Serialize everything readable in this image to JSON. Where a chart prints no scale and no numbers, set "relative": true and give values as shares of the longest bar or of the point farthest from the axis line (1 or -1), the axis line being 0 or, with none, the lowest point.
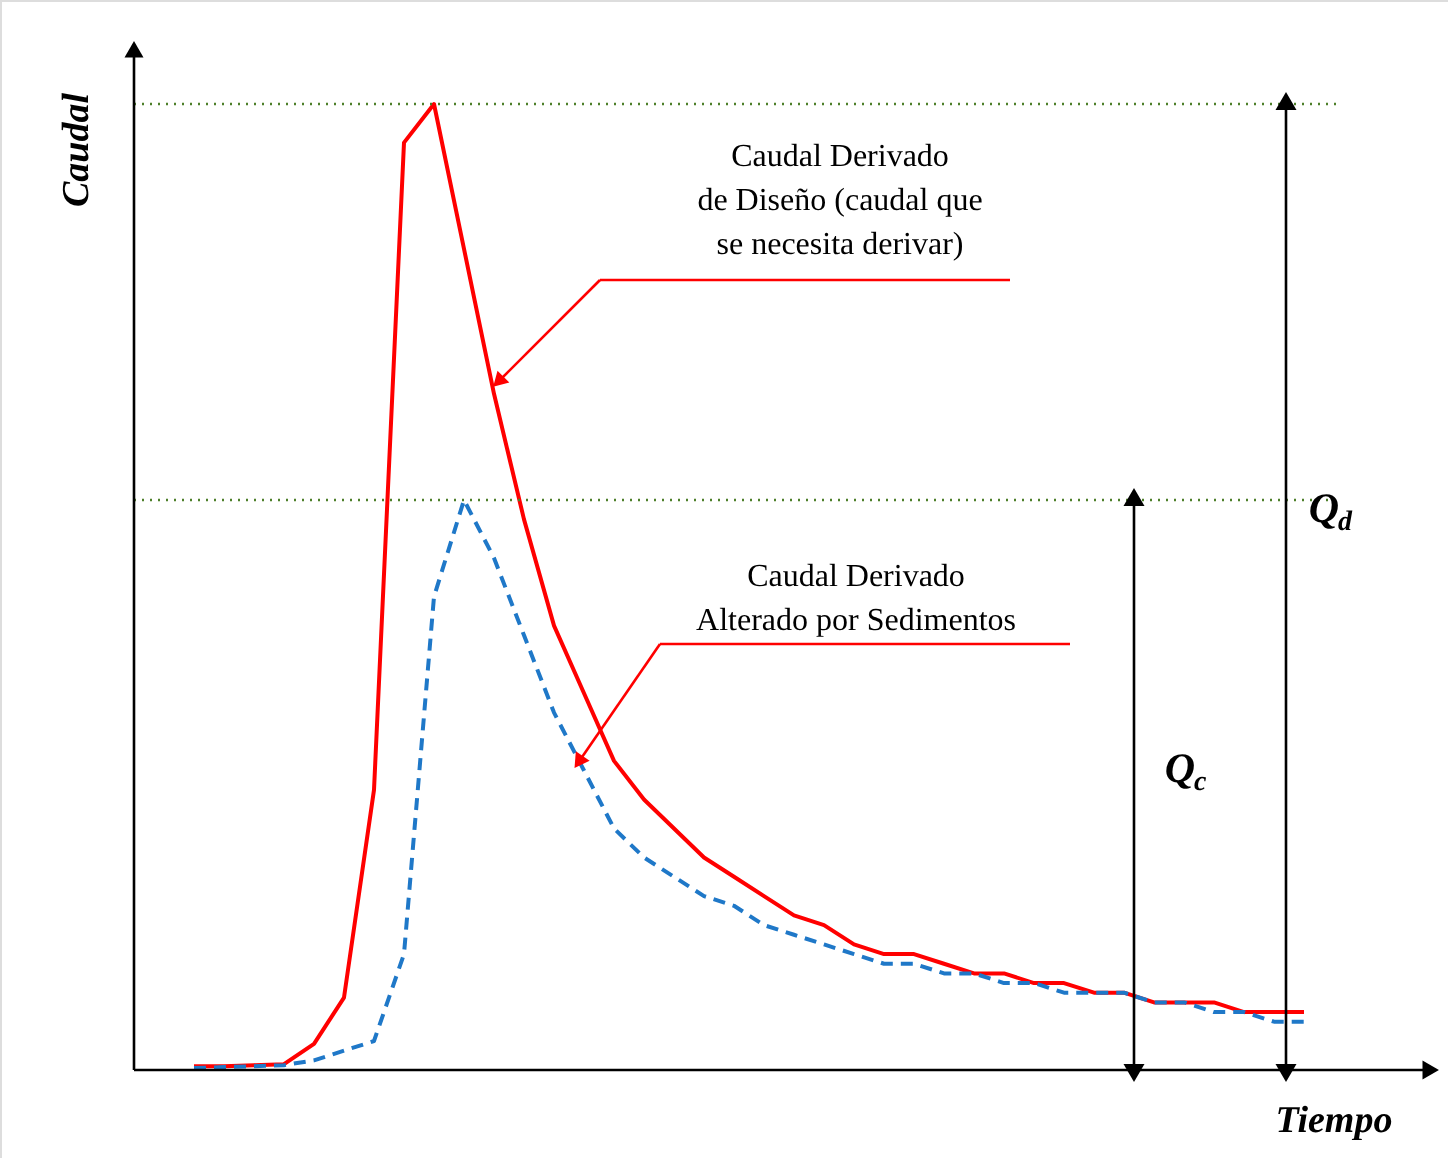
{
  "chart_data": {
    "type": "line",
    "relative": true,
    "xlabel": "Tiempo",
    "ylabel": "Caudal",
    "categories": [
      null,
      null,
      null,
      null,
      null,
      null,
      null,
      null,
      null,
      null,
      null,
      null,
      null,
      null,
      null,
      null,
      null,
      null,
      null,
      null,
      null,
      null,
      null,
      null,
      null,
      null,
      null,
      null,
      null,
      null,
      null,
      null,
      null,
      null,
      null,
      null,
      null,
      null,
      null,
      null,
      null,
      null,
      null,
      null
    ],
    "series": [
      {
        "color": "#ff0000",
        "line_style": "solid",
        "values": [
          null,
          null,
          0.004,
          0.004,
          0.005,
          0.006,
          0.027,
          0.075,
          0.29,
          0.96,
          1,
          0.85,
          0.7,
          0.57,
          0.46,
          0.39,
          0.32,
          0.28,
          0.25,
          0.22,
          0.2,
          0.18,
          0.16,
          0.15,
          0.13,
          0.12,
          0.12,
          0.11,
          0.1,
          0.1,
          0.09,
          0.09,
          0.08,
          0.08,
          0.07,
          0.07,
          0.07,
          0.06,
          0.06,
          0.06,
          null,
          null,
          null,
          null
        ]
      },
      {
        "color": "#1f78c8",
        "line_style": "dashed",
        "values": [
          null,
          null,
          0.002,
          0.003,
          0.004,
          0.005,
          0.01,
          0.02,
          0.03,
          0.12,
          0.49,
          0.59,
          0.53,
          0.45,
          0.37,
          0.31,
          0.25,
          0.22,
          0.2,
          0.18,
          0.17,
          0.15,
          0.14,
          0.13,
          0.12,
          0.11,
          0.11,
          0.1,
          0.1,
          0.09,
          0.09,
          0.08,
          0.08,
          0.08,
          0.07,
          0.07,
          0.06,
          0.06,
          0.05,
          0.05,
          null,
          null,
          null,
          null
        ]
      }
    ],
    "ref_lines": [
      {
        "axis": "y",
        "value": 1,
        "color": "#4d7f2a",
        "line_style": "dotted"
      },
      {
        "axis": "y",
        "value": 0.59,
        "color": "#4d7f2a",
        "line_style": "dotted"
      }
    ],
    "annotations": [
      "Caudal Derivado\nde Diseño (caudal que\nse necesita derivar)",
      "Caudal Derivado\nAlterado por Sedimentos",
      "Q$_{d}$",
      "Q$_{c}$"
    ]
  }
}
